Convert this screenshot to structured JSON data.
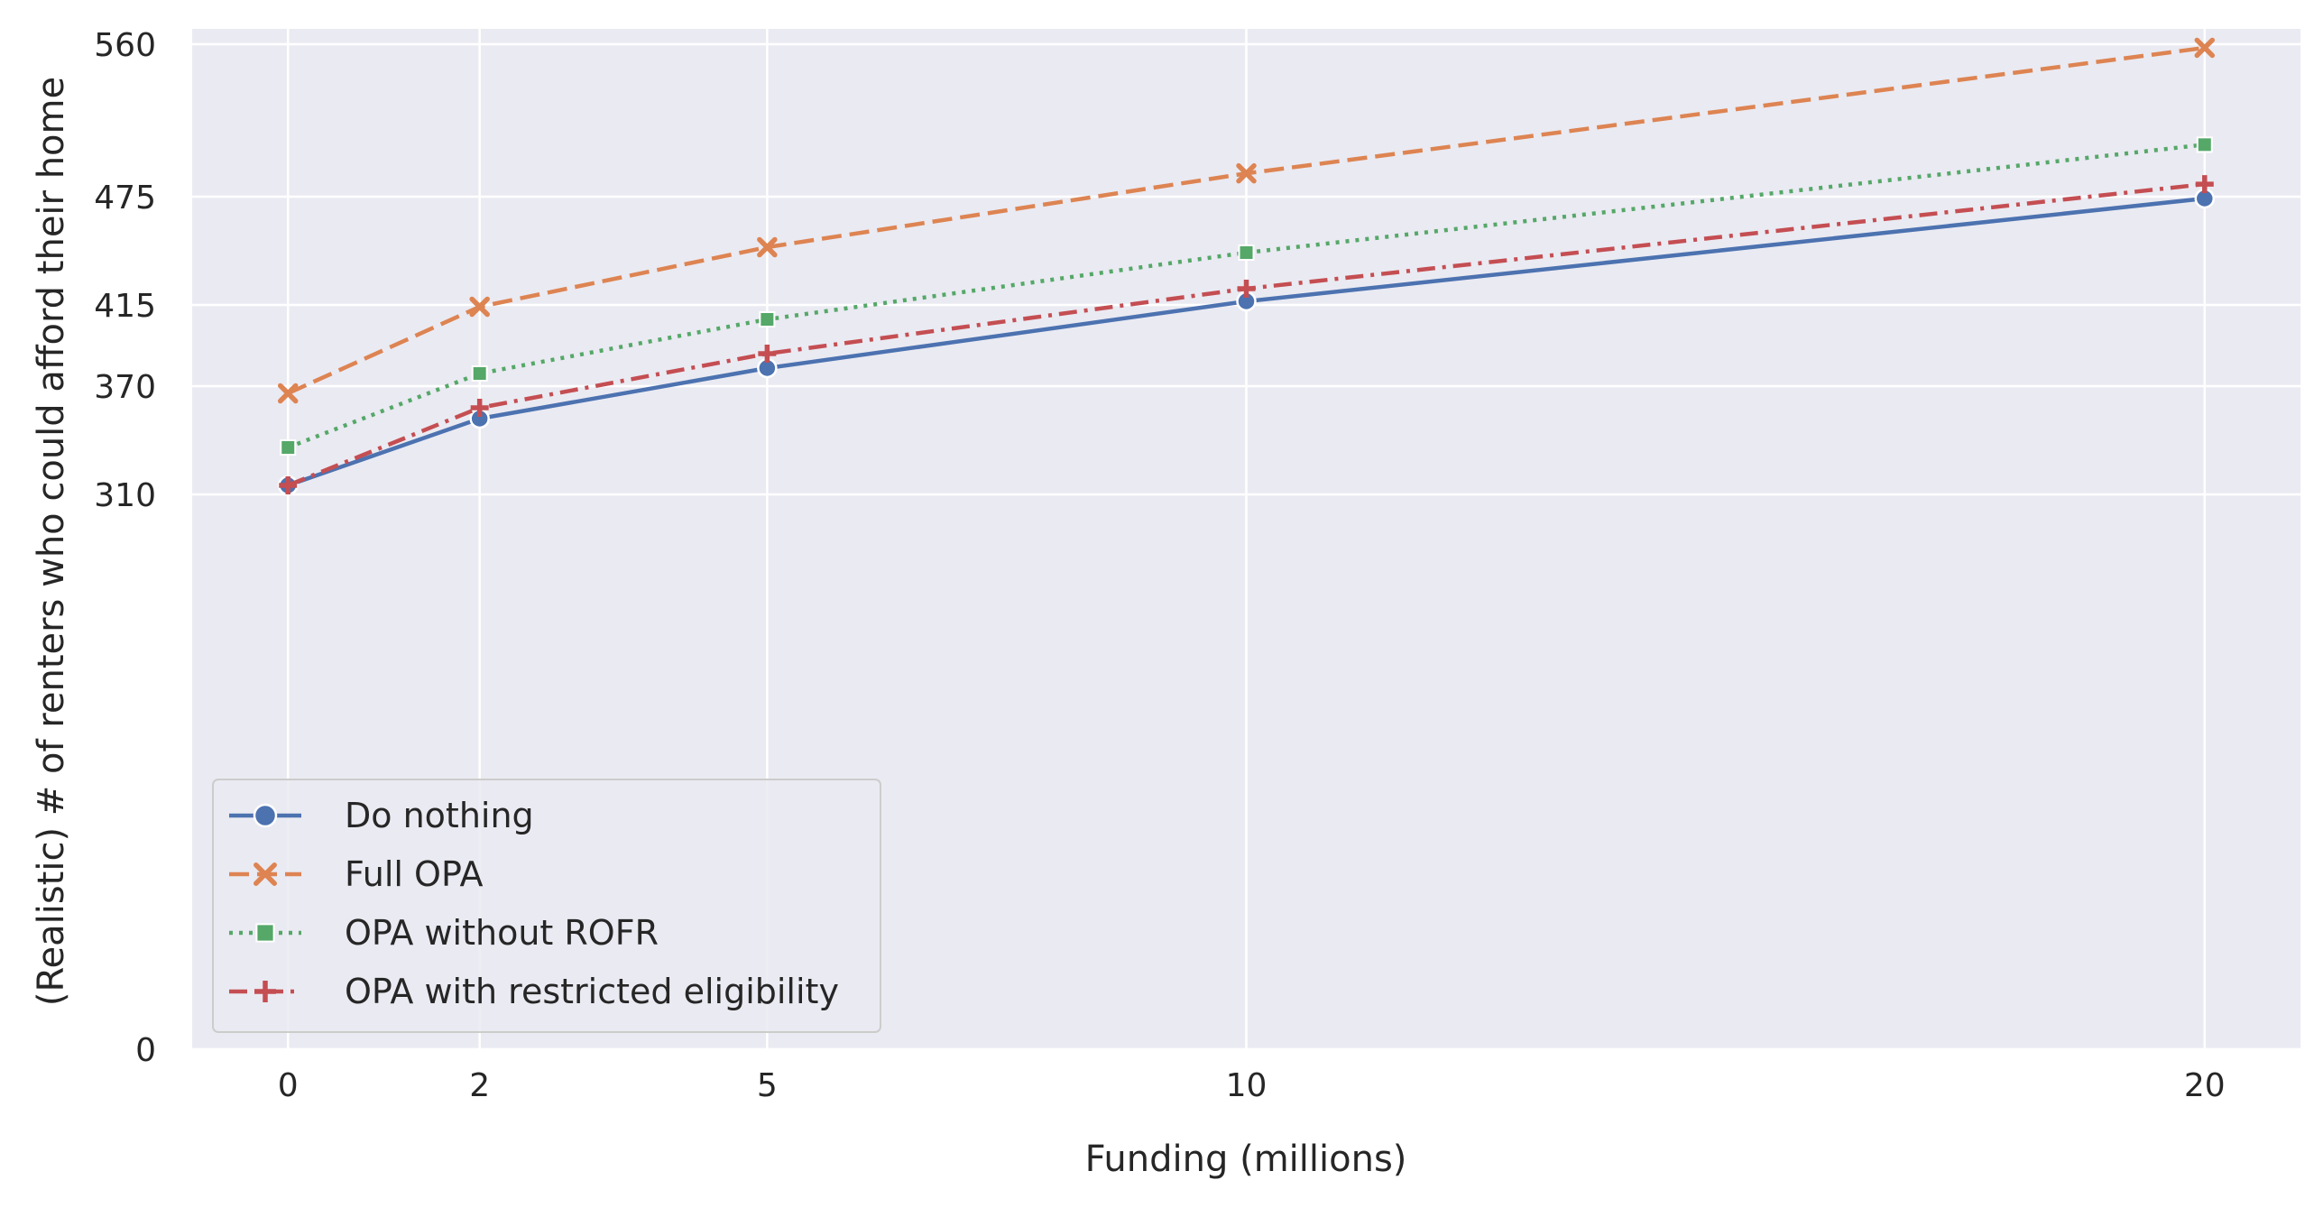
{
  "chart_data": {
    "type": "line",
    "xlabel": "Funding (millions)",
    "ylabel": "(Realistic) # of renters who could afford their home",
    "x": [
      0,
      2,
      5,
      10,
      20
    ],
    "xticks": [
      0,
      2,
      5,
      10,
      20
    ],
    "yticks": [
      0,
      310,
      370,
      415,
      475,
      560
    ],
    "xlim": [
      -1,
      21
    ],
    "ylim": [
      0,
      560
    ],
    "y_scale": "piecewise",
    "grid": true,
    "legend_position": "lower-left",
    "background_color": "#eaeaf2",
    "series": [
      {
        "name": "Do nothing",
        "values": [
          315,
          352,
          380,
          417,
          474
        ],
        "color": "#4c72b0",
        "line_style": "solid",
        "marker": "circle"
      },
      {
        "name": "Full OPA",
        "values": [
          366,
          414,
          447,
          488,
          558
        ],
        "color": "#dd8452",
        "line_style": "dashed",
        "marker": "x"
      },
      {
        "name": "OPA without ROFR",
        "values": [
          336,
          377,
          407,
          444,
          504
        ],
        "color": "#55a868",
        "line_style": "dotted",
        "marker": "square"
      },
      {
        "name": "OPA with restricted eligibility",
        "values": [
          315,
          358,
          388,
          424,
          482
        ],
        "color": "#c44e52",
        "line_style": "dashdot",
        "marker": "plus"
      }
    ]
  }
}
